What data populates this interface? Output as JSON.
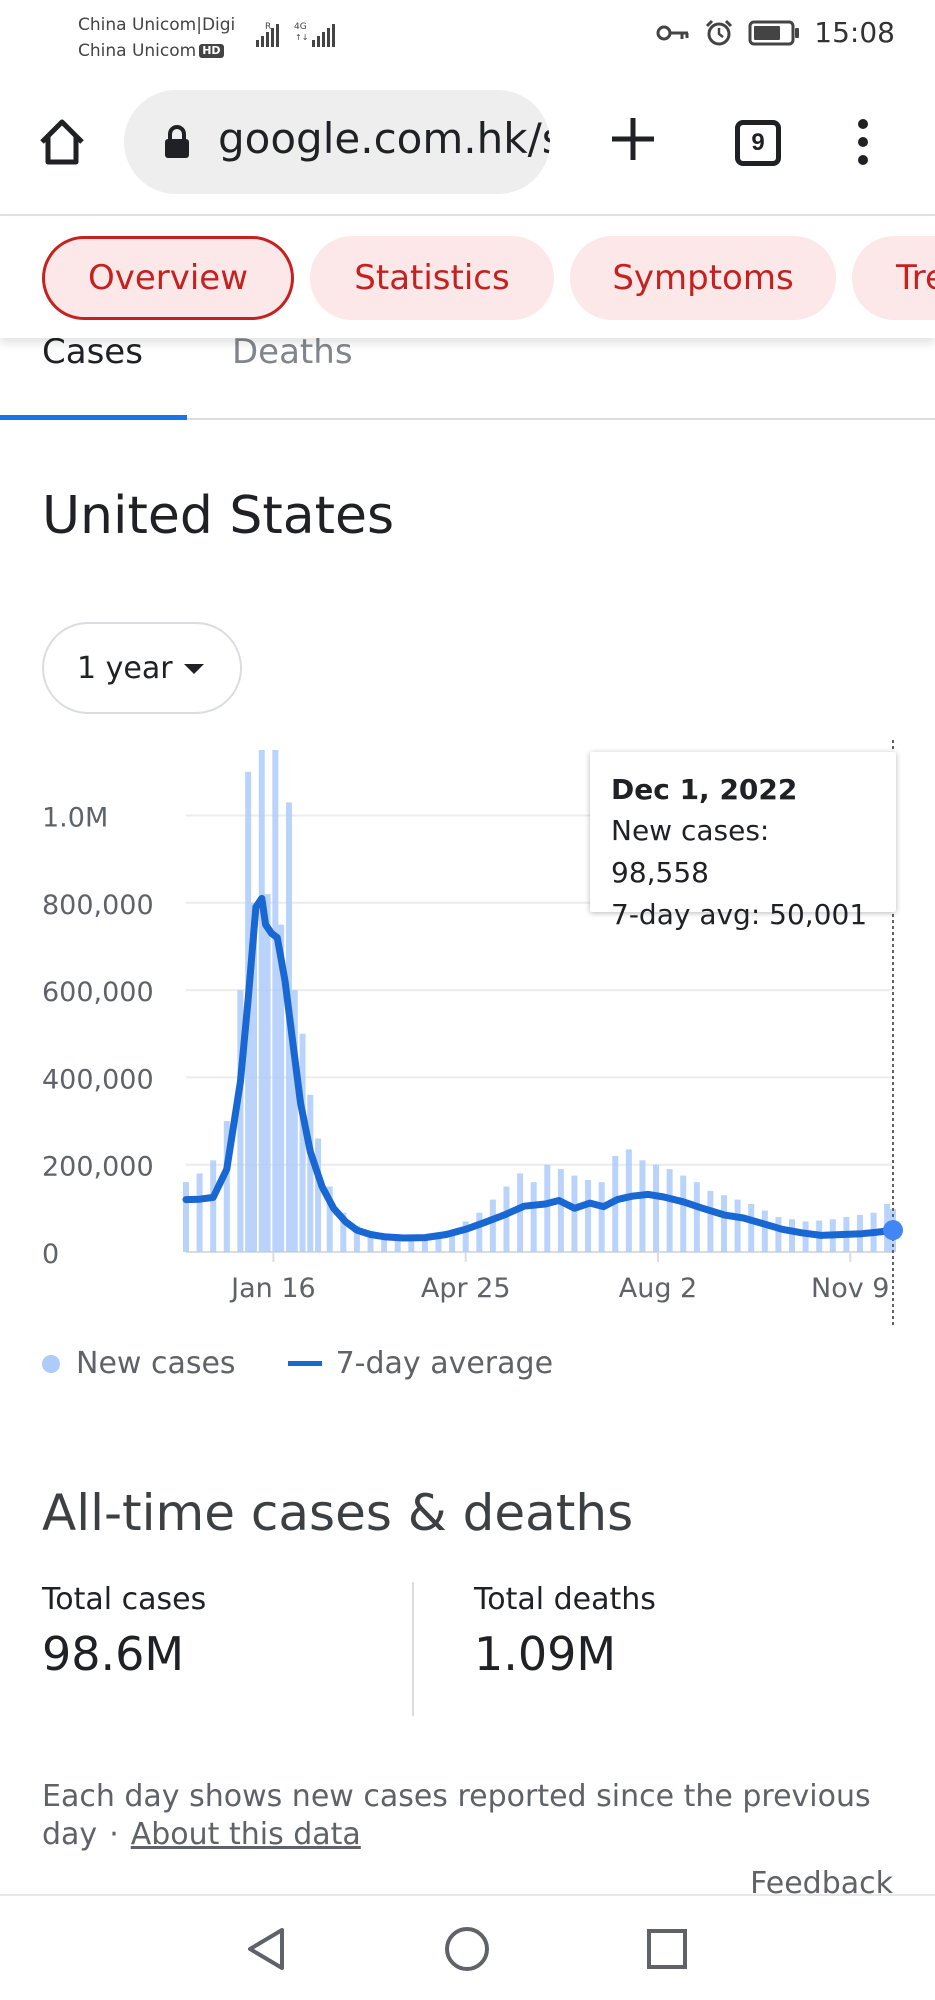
{
  "status_bar": {
    "carrier_line1": "China Unicom|Digi",
    "carrier_line2": "China Unicom",
    "hd_badge": "HD",
    "signal_1_tag": "R",
    "signal_2_tag": "4G",
    "time": "15:08",
    "icons": [
      "key-icon",
      "alarm-icon",
      "battery-icon"
    ]
  },
  "browser": {
    "url": "google.com.hk/se",
    "tab_count": "9"
  },
  "chips": [
    {
      "label": "Overview",
      "active": true
    },
    {
      "label": "Statistics",
      "active": false
    },
    {
      "label": "Symptoms",
      "active": false
    },
    {
      "label": "Tre",
      "active": false
    }
  ],
  "metric_tabs": [
    {
      "label": "Cases",
      "active": true
    },
    {
      "label": "Deaths",
      "active": false
    }
  ],
  "region": "United States",
  "range_select": {
    "value": "1 year"
  },
  "tooltip": {
    "date": "Dec 1, 2022",
    "new_cases": "New cases: 98,558",
    "avg": "7-day avg: 50,001"
  },
  "legend": {
    "new_cases": "New cases",
    "avg": "7-day average"
  },
  "chart_data": {
    "type": "bar",
    "title": "",
    "xlabel": "",
    "ylabel": "",
    "ylim": [
      0,
      1150000
    ],
    "y_ticks": [
      {
        "value": 0,
        "label": "0"
      },
      {
        "value": 200000,
        "label": "200,000"
      },
      {
        "value": 400000,
        "label": "400,000"
      },
      {
        "value": 600000,
        "label": "600,000"
      },
      {
        "value": 800000,
        "label": "800,000"
      },
      {
        "value": 1000000,
        "label": "1.0M"
      }
    ],
    "x_ticks": [
      {
        "date": "2022-01-16",
        "label": "Jan 16"
      },
      {
        "date": "2022-04-25",
        "label": "Apr 25"
      },
      {
        "date": "2022-08-02",
        "label": "Aug 2"
      },
      {
        "date": "2022-11-09",
        "label": "Nov 9"
      }
    ],
    "x_range": [
      "2021-12-02",
      "2022-12-01"
    ],
    "grid": true,
    "highlight": {
      "date": "2022-12-01",
      "new_cases": 98558,
      "avg": 50001
    },
    "series": [
      {
        "name": "New cases",
        "style": "bars",
        "color": "#aecbfa",
        "points": [
          [
            "2021-12-02",
            160000
          ],
          [
            "2021-12-09",
            180000
          ],
          [
            "2021-12-16",
            210000
          ],
          [
            "2021-12-23",
            300000
          ],
          [
            "2021-12-30",
            600000
          ],
          [
            "2022-01-03",
            1100000
          ],
          [
            "2022-01-06",
            800000
          ],
          [
            "2022-01-10",
            1150000
          ],
          [
            "2022-01-13",
            820000
          ],
          [
            "2022-01-17",
            1150000
          ],
          [
            "2022-01-20",
            750000
          ],
          [
            "2022-01-24",
            1030000
          ],
          [
            "2022-01-27",
            600000
          ],
          [
            "2022-01-31",
            500000
          ],
          [
            "2022-02-04",
            360000
          ],
          [
            "2022-02-08",
            260000
          ],
          [
            "2022-02-14",
            150000
          ],
          [
            "2022-02-21",
            90000
          ],
          [
            "2022-02-28",
            60000
          ],
          [
            "2022-03-07",
            48000
          ],
          [
            "2022-03-14",
            40000
          ],
          [
            "2022-03-21",
            38000
          ],
          [
            "2022-03-28",
            36000
          ],
          [
            "2022-04-04",
            35000
          ],
          [
            "2022-04-11",
            40000
          ],
          [
            "2022-04-18",
            50000
          ],
          [
            "2022-04-25",
            70000
          ],
          [
            "2022-05-02",
            90000
          ],
          [
            "2022-05-09",
            120000
          ],
          [
            "2022-05-16",
            150000
          ],
          [
            "2022-05-23",
            180000
          ],
          [
            "2022-05-30",
            160000
          ],
          [
            "2022-06-06",
            200000
          ],
          [
            "2022-06-13",
            190000
          ],
          [
            "2022-06-20",
            175000
          ],
          [
            "2022-06-27",
            165000
          ],
          [
            "2022-07-04",
            160000
          ],
          [
            "2022-07-11",
            220000
          ],
          [
            "2022-07-18",
            235000
          ],
          [
            "2022-07-25",
            210000
          ],
          [
            "2022-08-01",
            200000
          ],
          [
            "2022-08-08",
            190000
          ],
          [
            "2022-08-15",
            175000
          ],
          [
            "2022-08-22",
            160000
          ],
          [
            "2022-08-29",
            140000
          ],
          [
            "2022-09-05",
            130000
          ],
          [
            "2022-09-12",
            120000
          ],
          [
            "2022-09-19",
            110000
          ],
          [
            "2022-09-26",
            95000
          ],
          [
            "2022-10-03",
            80000
          ],
          [
            "2022-10-10",
            75000
          ],
          [
            "2022-10-17",
            70000
          ],
          [
            "2022-10-24",
            72000
          ],
          [
            "2022-10-31",
            75000
          ],
          [
            "2022-11-07",
            80000
          ],
          [
            "2022-11-14",
            85000
          ],
          [
            "2022-11-21",
            90000
          ],
          [
            "2022-11-28",
            110000
          ],
          [
            "2022-12-01",
            98558
          ]
        ]
      },
      {
        "name": "7-day average",
        "style": "line",
        "color": "#1967d2",
        "points": [
          [
            "2021-12-02",
            120000
          ],
          [
            "2021-12-09",
            121000
          ],
          [
            "2021-12-16",
            125000
          ],
          [
            "2021-12-23",
            190000
          ],
          [
            "2021-12-30",
            390000
          ],
          [
            "2022-01-03",
            580000
          ],
          [
            "2022-01-07",
            790000
          ],
          [
            "2022-01-10",
            810000
          ],
          [
            "2022-01-12",
            750000
          ],
          [
            "2022-01-15",
            730000
          ],
          [
            "2022-01-18",
            720000
          ],
          [
            "2022-01-22",
            620000
          ],
          [
            "2022-01-26",
            480000
          ],
          [
            "2022-01-30",
            340000
          ],
          [
            "2022-02-04",
            230000
          ],
          [
            "2022-02-10",
            150000
          ],
          [
            "2022-02-16",
            100000
          ],
          [
            "2022-02-22",
            70000
          ],
          [
            "2022-02-28",
            50000
          ],
          [
            "2022-03-07",
            40000
          ],
          [
            "2022-03-14",
            35000
          ],
          [
            "2022-03-24",
            32000
          ],
          [
            "2022-04-04",
            33000
          ],
          [
            "2022-04-15",
            40000
          ],
          [
            "2022-04-25",
            52000
          ],
          [
            "2022-05-05",
            68000
          ],
          [
            "2022-05-15",
            85000
          ],
          [
            "2022-05-25",
            105000
          ],
          [
            "2022-06-05",
            110000
          ],
          [
            "2022-06-12",
            118000
          ],
          [
            "2022-06-20",
            100000
          ],
          [
            "2022-06-28",
            112000
          ],
          [
            "2022-07-05",
            104000
          ],
          [
            "2022-07-12",
            120000
          ],
          [
            "2022-07-20",
            128000
          ],
          [
            "2022-07-28",
            132000
          ],
          [
            "2022-08-05",
            126000
          ],
          [
            "2022-08-15",
            115000
          ],
          [
            "2022-08-25",
            100000
          ],
          [
            "2022-09-05",
            85000
          ],
          [
            "2022-09-15",
            78000
          ],
          [
            "2022-09-25",
            65000
          ],
          [
            "2022-10-05",
            52000
          ],
          [
            "2022-10-15",
            44000
          ],
          [
            "2022-10-25",
            38000
          ],
          [
            "2022-11-05",
            40000
          ],
          [
            "2022-11-15",
            42000
          ],
          [
            "2022-11-22",
            45000
          ],
          [
            "2022-11-28",
            48000
          ],
          [
            "2022-12-01",
            50001
          ]
        ]
      }
    ]
  },
  "all_time": {
    "title": "All-time cases & deaths",
    "total_cases_label": "Total cases",
    "total_cases_value": "98.6M",
    "total_deaths_label": "Total deaths",
    "total_deaths_value": "1.09M"
  },
  "footnote": {
    "text": "Each day shows new cases reported since the previous day",
    "separator": "·",
    "link": "About this data"
  },
  "feedback": "Feedback",
  "nav_bar": {
    "icons": [
      "back-triangle-icon",
      "home-circle-icon",
      "recents-square-icon"
    ]
  }
}
